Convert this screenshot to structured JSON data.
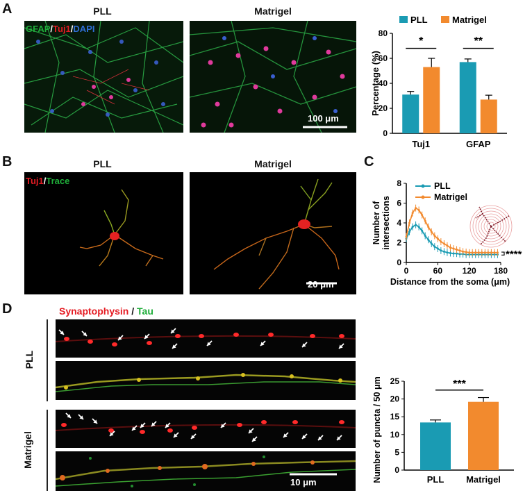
{
  "panels": {
    "A": {
      "letter": "A",
      "titles": [
        "PLL",
        "Matrigel"
      ],
      "stain": {
        "gfap": "GFAP",
        "tuj1": "Tuj1",
        "dapi": "DAPI",
        "sep": "/"
      },
      "scalebar": "100 μm"
    },
    "B": {
      "letter": "B",
      "titles": [
        "PLL",
        "Matrigel"
      ],
      "stain": {
        "tuj1": "Tuj1",
        "trace": "Trace",
        "sep": "/"
      },
      "scalebar": "20 μm"
    },
    "C": {
      "letter": "C"
    },
    "D": {
      "letter": "D",
      "stain": {
        "syn": "Synaptophysin",
        "tau": "Tau",
        "sep": " / "
      },
      "row_labels": [
        "PLL",
        "Matrigel"
      ],
      "scalebar": "10 μm"
    }
  },
  "colors": {
    "pll": "#1a9bb3",
    "matrigel": "#f28a2e",
    "tuj1": "#e51c23",
    "trace": "#1fae3a",
    "dapi": "#2f6fd6"
  },
  "chart_data": [
    {
      "id": "A-bar",
      "type": "bar",
      "categories": [
        "Tuj1",
        "GFAP"
      ],
      "series": [
        {
          "name": "PLL",
          "values": [
            31,
            57
          ],
          "errors": [
            2.5,
            2.5
          ]
        },
        {
          "name": "Matrigel",
          "values": [
            53,
            27
          ],
          "errors": [
            7,
            3.5
          ]
        }
      ],
      "ylabel": "Percentage (%)",
      "ylim": [
        0,
        80
      ],
      "yticks": [
        0,
        20,
        40,
        60,
        80
      ],
      "legend": "top",
      "significance": [
        "*",
        "**"
      ]
    },
    {
      "id": "C-line",
      "type": "line",
      "x": [
        0,
        6,
        12,
        18,
        24,
        30,
        36,
        42,
        48,
        54,
        60,
        66,
        72,
        78,
        84,
        90,
        96,
        102,
        108,
        114,
        120,
        126,
        132,
        138,
        144,
        150,
        156,
        162,
        168,
        174
      ],
      "series": [
        {
          "name": "PLL",
          "values": [
            2.4,
            3.1,
            3.6,
            3.8,
            3.6,
            3.2,
            2.7,
            2.3,
            1.9,
            1.6,
            1.4,
            1.2,
            1.1,
            1.0,
            0.95,
            0.9,
            0.9,
            0.85,
            0.85,
            0.8,
            0.8,
            0.8,
            0.8,
            0.8,
            0.8,
            0.8,
            0.8,
            0.8,
            0.8,
            0.8
          ]
        },
        {
          "name": "Matrigel",
          "values": [
            2.6,
            4.0,
            5.0,
            5.5,
            5.3,
            4.8,
            4.2,
            3.6,
            3.1,
            2.7,
            2.4,
            2.1,
            1.9,
            1.7,
            1.5,
            1.4,
            1.3,
            1.2,
            1.1,
            1.05,
            1.0,
            1.0,
            1.0,
            1.0,
            1.0,
            1.0,
            1.0,
            1.0,
            1.0,
            1.0
          ]
        }
      ],
      "xlabel": "Distance from the soma (μm)",
      "ylabel": "Number of intersections",
      "xlim": [
        0,
        180
      ],
      "ylim": [
        0,
        8
      ],
      "xticks": [
        0,
        60,
        120,
        180
      ],
      "yticks": [
        0,
        2,
        4,
        6,
        8
      ],
      "legend": "top-left",
      "significance": "****"
    },
    {
      "id": "D-bar",
      "type": "bar",
      "categories": [
        "PLL",
        "Matrigel"
      ],
      "values": [
        13.4,
        19.2
      ],
      "errors": [
        0.7,
        1.2
      ],
      "ylabel": "Number of puncta / 50 μm",
      "ylim": [
        0,
        25
      ],
      "yticks": [
        0,
        5,
        10,
        15,
        20,
        25
      ],
      "significance": "***"
    }
  ]
}
